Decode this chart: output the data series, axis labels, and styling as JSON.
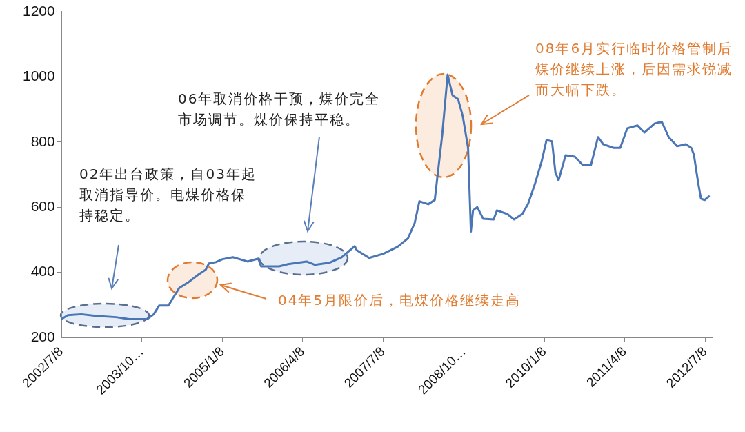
{
  "chart_data": {
    "type": "line",
    "annotations": [
      "02年出台政策，自03年起取消指导价。电煤价格保持稳定。",
      "06年取消价格干预，煤价完全市场调节。煤价保持平稳。",
      "04年5月限价后，电煤价格继续走高",
      "08年6月实行临时价格管制后煤价继续上涨，后因需求锐减而大幅下跌。"
    ],
    "x": [
      "2002-07-08",
      "2002-08-15",
      "2002-10-30",
      "2003-01-20",
      "2003-05-15",
      "2003-07-30",
      "2003-11-08",
      "2003-12-15",
      "2004-01-15",
      "2004-03-08",
      "2004-04-01",
      "2004-05-08",
      "2004-06-28",
      "2004-08-25",
      "2004-10-05",
      "2004-10-23",
      "2004-12-01",
      "2005-01-08",
      "2005-03-08",
      "2005-05-30",
      "2005-07-30",
      "2005-08-15",
      "2005-11-25",
      "2006-01-15",
      "2006-04-30",
      "2006-06-15",
      "2006-09-05",
      "2006-11-15",
      "2007-01-28",
      "2007-02-08",
      "2007-04-20",
      "2007-07-10",
      "2007-09-28",
      "2007-11-26",
      "2008-01-03",
      "2008-01-30",
      "2008-03-20",
      "2008-04-26",
      "2008-06-08",
      "2008-07-08",
      "2008-08-05",
      "2008-09-05",
      "2008-10-02",
      "2008-11-01",
      "2008-11-17",
      "2008-11-29",
      "2008-12-23",
      "2009-01-26",
      "2009-03-26",
      "2009-04-14",
      "2009-06-11",
      "2009-07-20",
      "2009-09-05",
      "2009-10-08",
      "2009-11-14",
      "2009-12-23",
      "2010-01-20",
      "2010-02-20",
      "2010-03-11",
      "2010-03-29",
      "2010-05-08",
      "2010-06-29",
      "2010-08-14",
      "2010-09-29",
      "2010-11-08",
      "2010-12-08",
      "2011-02-05",
      "2011-03-14",
      "2011-04-23",
      "2011-06-20",
      "2011-07-29",
      "2011-09-26",
      "2011-11-05",
      "2011-12-14",
      "2012-01-31",
      "2012-03-20",
      "2012-04-20",
      "2012-05-05",
      "2012-05-29",
      "2012-06-14",
      "2012-07-05",
      "2012-07-29"
    ],
    "series": [
      {
        "color": "#4a76b5",
        "values": [
          256,
          268,
          271,
          266,
          262,
          256,
          256,
          271,
          298,
          298,
          320,
          352,
          369,
          393,
          408,
          427,
          431,
          440,
          446,
          433,
          442,
          418,
          418,
          425,
          433,
          423,
          429,
          446,
          480,
          468,
          444,
          457,
          478,
          504,
          551,
          618,
          609,
          622,
          825,
          1007,
          943,
          932,
          879,
          782,
          525,
          590,
          600,
          564,
          562,
          590,
          579,
          562,
          579,
          611,
          669,
          740,
          806,
          802,
          708,
          682,
          759,
          755,
          729,
          729,
          815,
          793,
          782,
          782,
          842,
          851,
          829,
          857,
          862,
          815,
          787,
          793,
          782,
          761,
          675,
          626,
          622,
          633
        ]
      }
    ],
    "xlim": [
      "2002-07-08",
      "2012-08-15"
    ],
    "xticks": [
      {
        "value": "2002-07-08",
        "label": "2002/7/8"
      },
      {
        "value": "2003-10-08",
        "label": "2003/10…"
      },
      {
        "value": "2005-01-08",
        "label": "2005/1/8"
      },
      {
        "value": "2006-04-08",
        "label": "2006/4/8"
      },
      {
        "value": "2007-07-08",
        "label": "2007/7/8"
      },
      {
        "value": "2008-10-08",
        "label": "2008/10…"
      },
      {
        "value": "2010-01-08",
        "label": "2010/1/8"
      },
      {
        "value": "2011-04-08",
        "label": "2011/4/8"
      },
      {
        "value": "2012-07-08",
        "label": "2012/7/8"
      }
    ],
    "ylim": [
      200,
      1200
    ],
    "yticks": [
      200,
      400,
      600,
      800,
      1000,
      1200
    ],
    "grid": false,
    "legend": false,
    "marker": "none",
    "line_style": "solid"
  }
}
